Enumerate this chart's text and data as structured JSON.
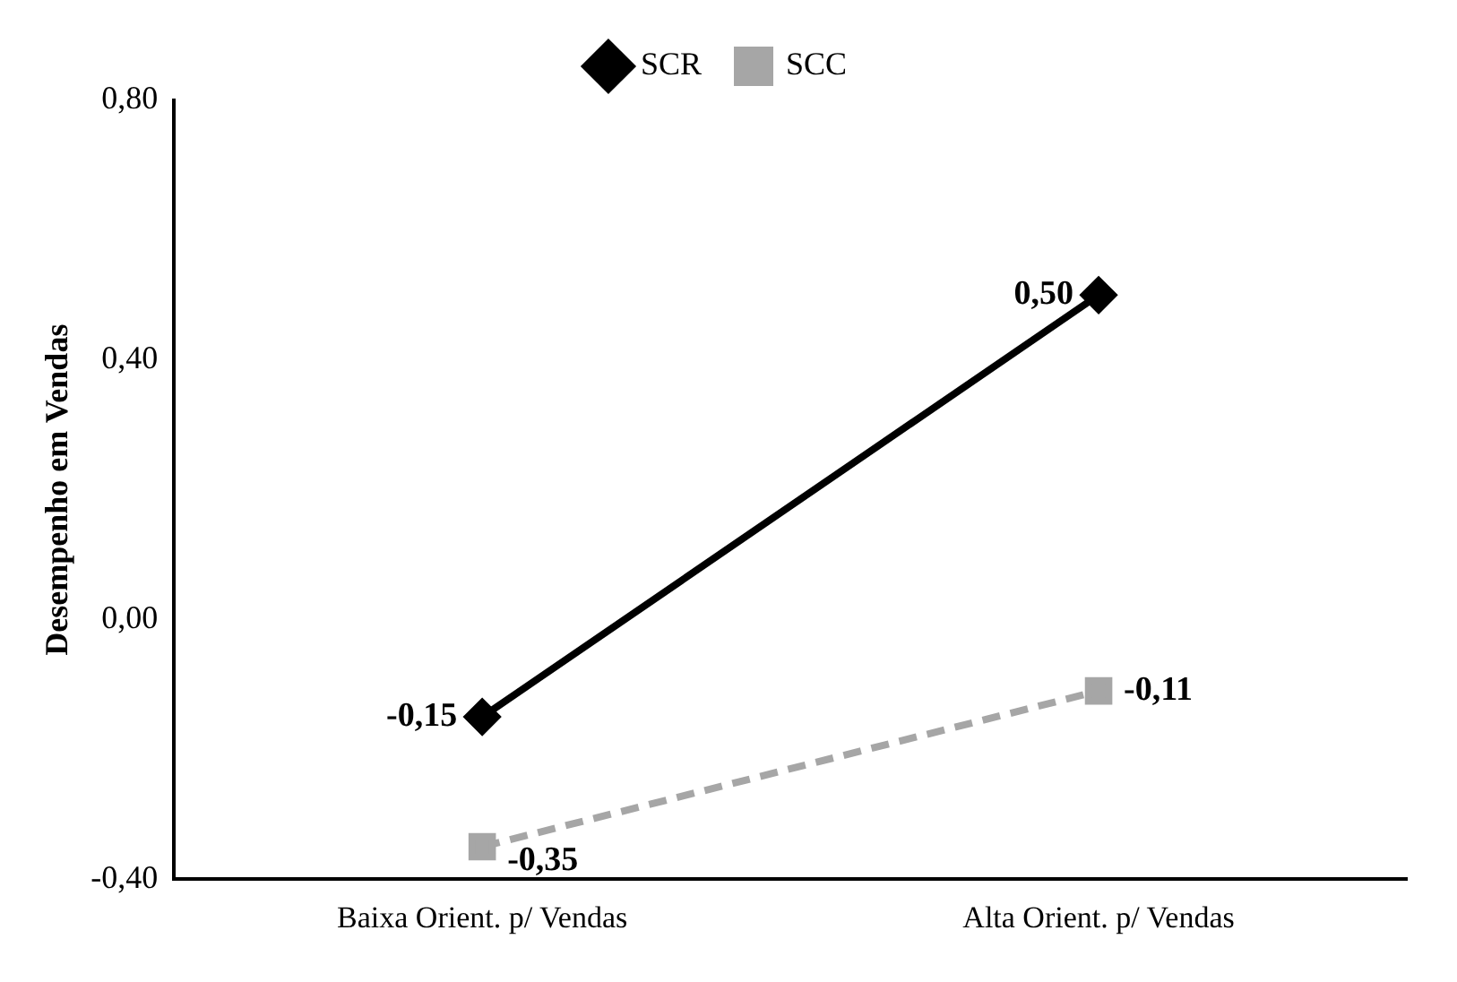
{
  "chart_data": {
    "type": "line",
    "ylabel": "Desempenho em Vendas",
    "categories": [
      "Baixa Orient. p/ Vendas",
      "Alta Orient. p/ Vendas"
    ],
    "series": [
      {
        "name": "SCR",
        "color": "#000000",
        "values": [
          -0.15,
          0.5
        ],
        "value_labels": [
          "-0,15",
          "0,50"
        ],
        "marker": "diamond",
        "line_style": "solid"
      },
      {
        "name": "SCC",
        "color": "#a6a6a6",
        "values": [
          -0.35,
          -0.11
        ],
        "value_labels": [
          "-0,35",
          "-0,11"
        ],
        "marker": "square",
        "line_style": "dashed"
      }
    ],
    "ylim": [
      -0.4,
      0.8
    ],
    "yticks": [
      {
        "value": -0.4,
        "label": "-0,40"
      },
      {
        "value": 0,
        "label": "0,00"
      },
      {
        "value": 0.4,
        "label": "0,40"
      },
      {
        "value": 0.8,
        "label": "0,80"
      }
    ],
    "grid": false,
    "legend": "top"
  }
}
